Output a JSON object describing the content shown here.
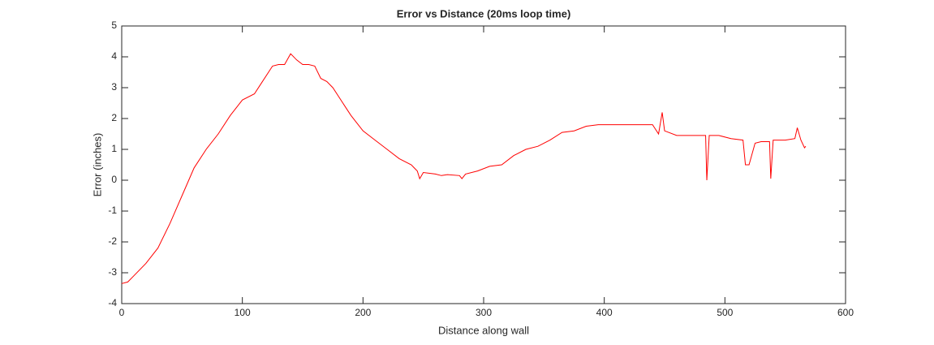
{
  "chart_data": {
    "type": "line",
    "title": "Error vs Distance (20ms loop time)",
    "xlabel": "Distance along wall",
    "ylabel": "Error (inches)",
    "x": [
      0,
      5,
      10,
      20,
      30,
      40,
      50,
      60,
      70,
      80,
      90,
      100,
      110,
      115,
      125,
      130,
      135,
      140,
      145,
      150,
      155,
      160,
      165,
      170,
      175,
      180,
      185,
      190,
      195,
      200,
      210,
      220,
      230,
      240,
      245,
      247,
      250,
      260,
      265,
      270,
      280,
      282,
      285,
      295,
      305,
      315,
      325,
      335,
      345,
      355,
      365,
      375,
      385,
      395,
      405,
      420,
      430,
      440,
      445,
      448,
      450,
      460,
      470,
      484,
      485,
      487,
      495,
      505,
      515,
      517,
      520,
      525,
      530,
      537,
      538,
      540,
      550,
      558,
      560,
      563,
      566,
      567
    ],
    "series": [
      {
        "name": "Error",
        "color": "#ff0000",
        "values": [
          -3.35,
          -3.3,
          -3.1,
          -2.7,
          -2.2,
          -1.4,
          -0.5,
          0.4,
          1.0,
          1.5,
          2.1,
          2.6,
          2.8,
          3.1,
          3.7,
          3.75,
          3.75,
          4.1,
          3.9,
          3.75,
          3.75,
          3.7,
          3.3,
          3.2,
          3.0,
          2.7,
          2.4,
          2.1,
          1.85,
          1.6,
          1.3,
          1.0,
          0.7,
          0.5,
          0.3,
          0.05,
          0.25,
          0.2,
          0.15,
          0.18,
          0.15,
          0.05,
          0.2,
          0.3,
          0.45,
          0.5,
          0.8,
          1.0,
          1.1,
          1.3,
          1.55,
          1.6,
          1.75,
          1.8,
          1.8,
          1.8,
          1.8,
          1.8,
          1.5,
          2.2,
          1.6,
          1.45,
          1.45,
          1.45,
          0.0,
          1.45,
          1.45,
          1.35,
          1.3,
          0.5,
          0.5,
          1.2,
          1.25,
          1.25,
          0.05,
          1.3,
          1.3,
          1.35,
          1.7,
          1.3,
          1.05,
          1.1
        ]
      }
    ],
    "xlim": [
      0,
      600
    ],
    "xticks": [
      0,
      100,
      200,
      300,
      400,
      500,
      600
    ],
    "ylim": [
      -4,
      5
    ],
    "yticks": [
      -4,
      -3,
      -2,
      -1,
      0,
      1,
      2,
      3,
      4,
      5
    ],
    "grid": false
  }
}
